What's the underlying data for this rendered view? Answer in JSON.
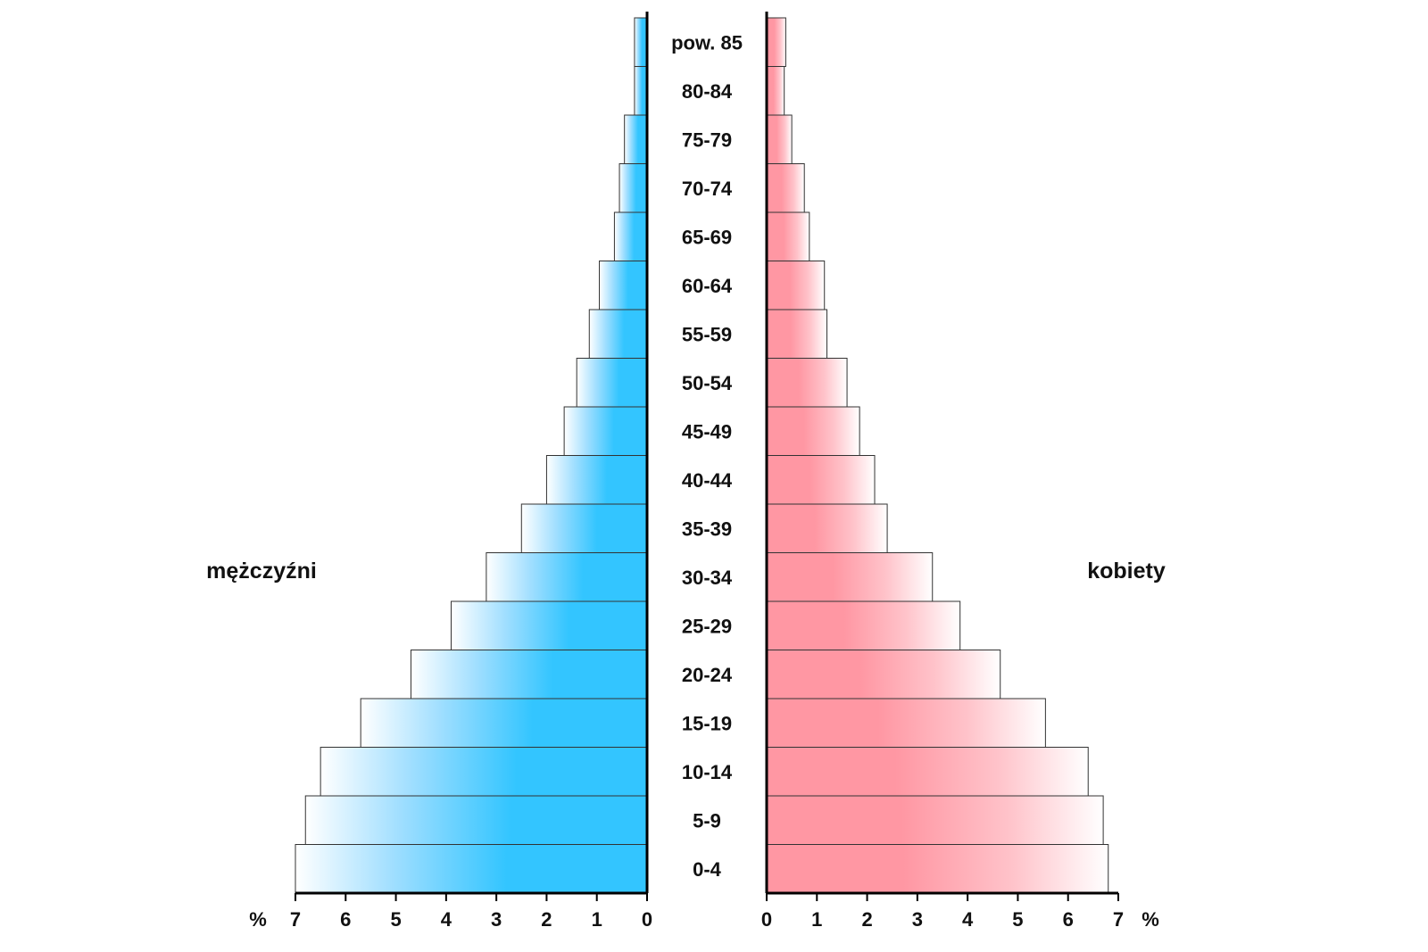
{
  "chart_data": {
    "type": "bar",
    "title": "",
    "categories": [
      "0-4",
      "5-9",
      "10-14",
      "15-19",
      "20-24",
      "25-29",
      "30-34",
      "35-39",
      "40-44",
      "45-49",
      "50-54",
      "55-59",
      "60-64",
      "65-69",
      "70-74",
      "75-79",
      "80-84",
      "pow. 85"
    ],
    "series": [
      {
        "name": "mężczyźni",
        "color": "#33c5ff",
        "values": [
          7.0,
          6.8,
          6.5,
          5.7,
          4.7,
          3.9,
          3.2,
          2.5,
          2.0,
          1.65,
          1.4,
          1.15,
          0.95,
          0.65,
          0.55,
          0.45,
          0.25,
          0.25
        ]
      },
      {
        "name": "kobiety",
        "color": "#ff97a3",
        "values": [
          6.8,
          6.7,
          6.4,
          5.55,
          4.65,
          3.85,
          3.3,
          2.4,
          2.15,
          1.85,
          1.6,
          1.2,
          1.15,
          0.85,
          0.75,
          0.5,
          0.35,
          0.38
        ]
      }
    ],
    "xlim": [
      0,
      7
    ],
    "x_ticks": [
      0,
      1,
      2,
      3,
      4,
      5,
      6,
      7
    ],
    "unit_label": "%",
    "male_label": "mężczyźni",
    "female_label": "kobiety",
    "grid": false,
    "legend": "none"
  }
}
